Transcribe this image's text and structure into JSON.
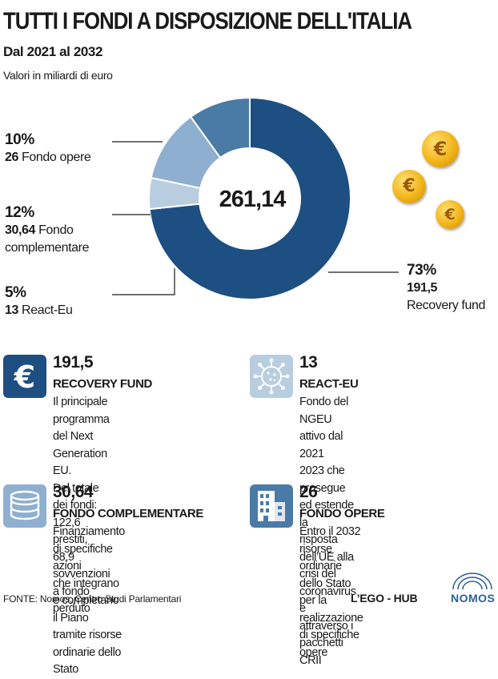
{
  "title": "TUTTI I FONDI A DISPOSIZIONE DELL'ITALIA",
  "subtitle": "Dal 2021 al 2032",
  "unit_note": "Valori in miliardi di euro",
  "chart_data": {
    "type": "pie",
    "donut": true,
    "total_label": "261,14",
    "slices": [
      {
        "name": "Recovery fund",
        "value": 191.5,
        "value_label": "191,5",
        "percent_label": "73%",
        "color": "#1d4f82"
      },
      {
        "name": "React-Eu",
        "value": 13,
        "value_label": "13",
        "percent_label": "5%",
        "color": "#b9cde0"
      },
      {
        "name": "Fondo complementare",
        "value": 30.64,
        "value_label": "30,64",
        "percent_label": "12%",
        "color": "#8fafd0"
      },
      {
        "name": "Fondo opere",
        "value": 26,
        "value_label": "26",
        "percent_label": "10%",
        "color": "#4a7aa6"
      }
    ]
  },
  "labels": {
    "opere": {
      "pct": "10%",
      "val": "26",
      "name": "Fondo opere"
    },
    "compl": {
      "pct": "12%",
      "val": "30,64",
      "name1": "Fondo",
      "name2": "complementare"
    },
    "react": {
      "pct": "5%",
      "val": "13",
      "name": "React-Eu"
    },
    "recovery": {
      "pct": "73%",
      "val": "191,5",
      "name": "Recovery fund"
    }
  },
  "coins": [
    "€",
    "€",
    "€"
  ],
  "cards": {
    "recovery": {
      "icon": "euro-icon",
      "icon_color": "#1d4f82",
      "number": "191,5",
      "name": "RECOVERY FUND",
      "desc": [
        "Il principale programma",
        "del Next Generation EU.",
        "Del totale dei fondi: 122,6 prestiti,",
        "68,9 sovvenzioni a fondo perduto"
      ]
    },
    "react": {
      "icon": "virus-icon",
      "icon_color": "#b9cde0",
      "number": "13",
      "name": "REACT-EU",
      "desc": [
        "Fondo del NGEU attivo dal 2021",
        "2023 che prosegue ed estende la",
        "risposta dell’UE alla crisi del",
        "coronavirus e attraverso i pacchetti CRII"
      ]
    },
    "compl": {
      "icon": "coin-stack-icon",
      "icon_color": "#8fafd0",
      "number": "30,64",
      "name": "FONDO COMPLEMENTARE",
      "desc": [
        "Finanziamento di specifiche azioni",
        "che integrano e completano il Piano",
        "tramite risorse ordinarie dello Stato"
      ]
    },
    "opere": {
      "icon": "building-icon",
      "icon_color": "#4a7aa6",
      "number": "26",
      "name": "FONDO OPERE",
      "desc": [
        "Entro il 2032 risorse ordinarie",
        "dello Stato per la realizzazione",
        "di specifiche opere"
      ]
    }
  },
  "source": "FONTE: Nomos, Centro Studi Parlamentari",
  "brand": "L’EGO - HUB",
  "brand_logo": "NOMOS"
}
